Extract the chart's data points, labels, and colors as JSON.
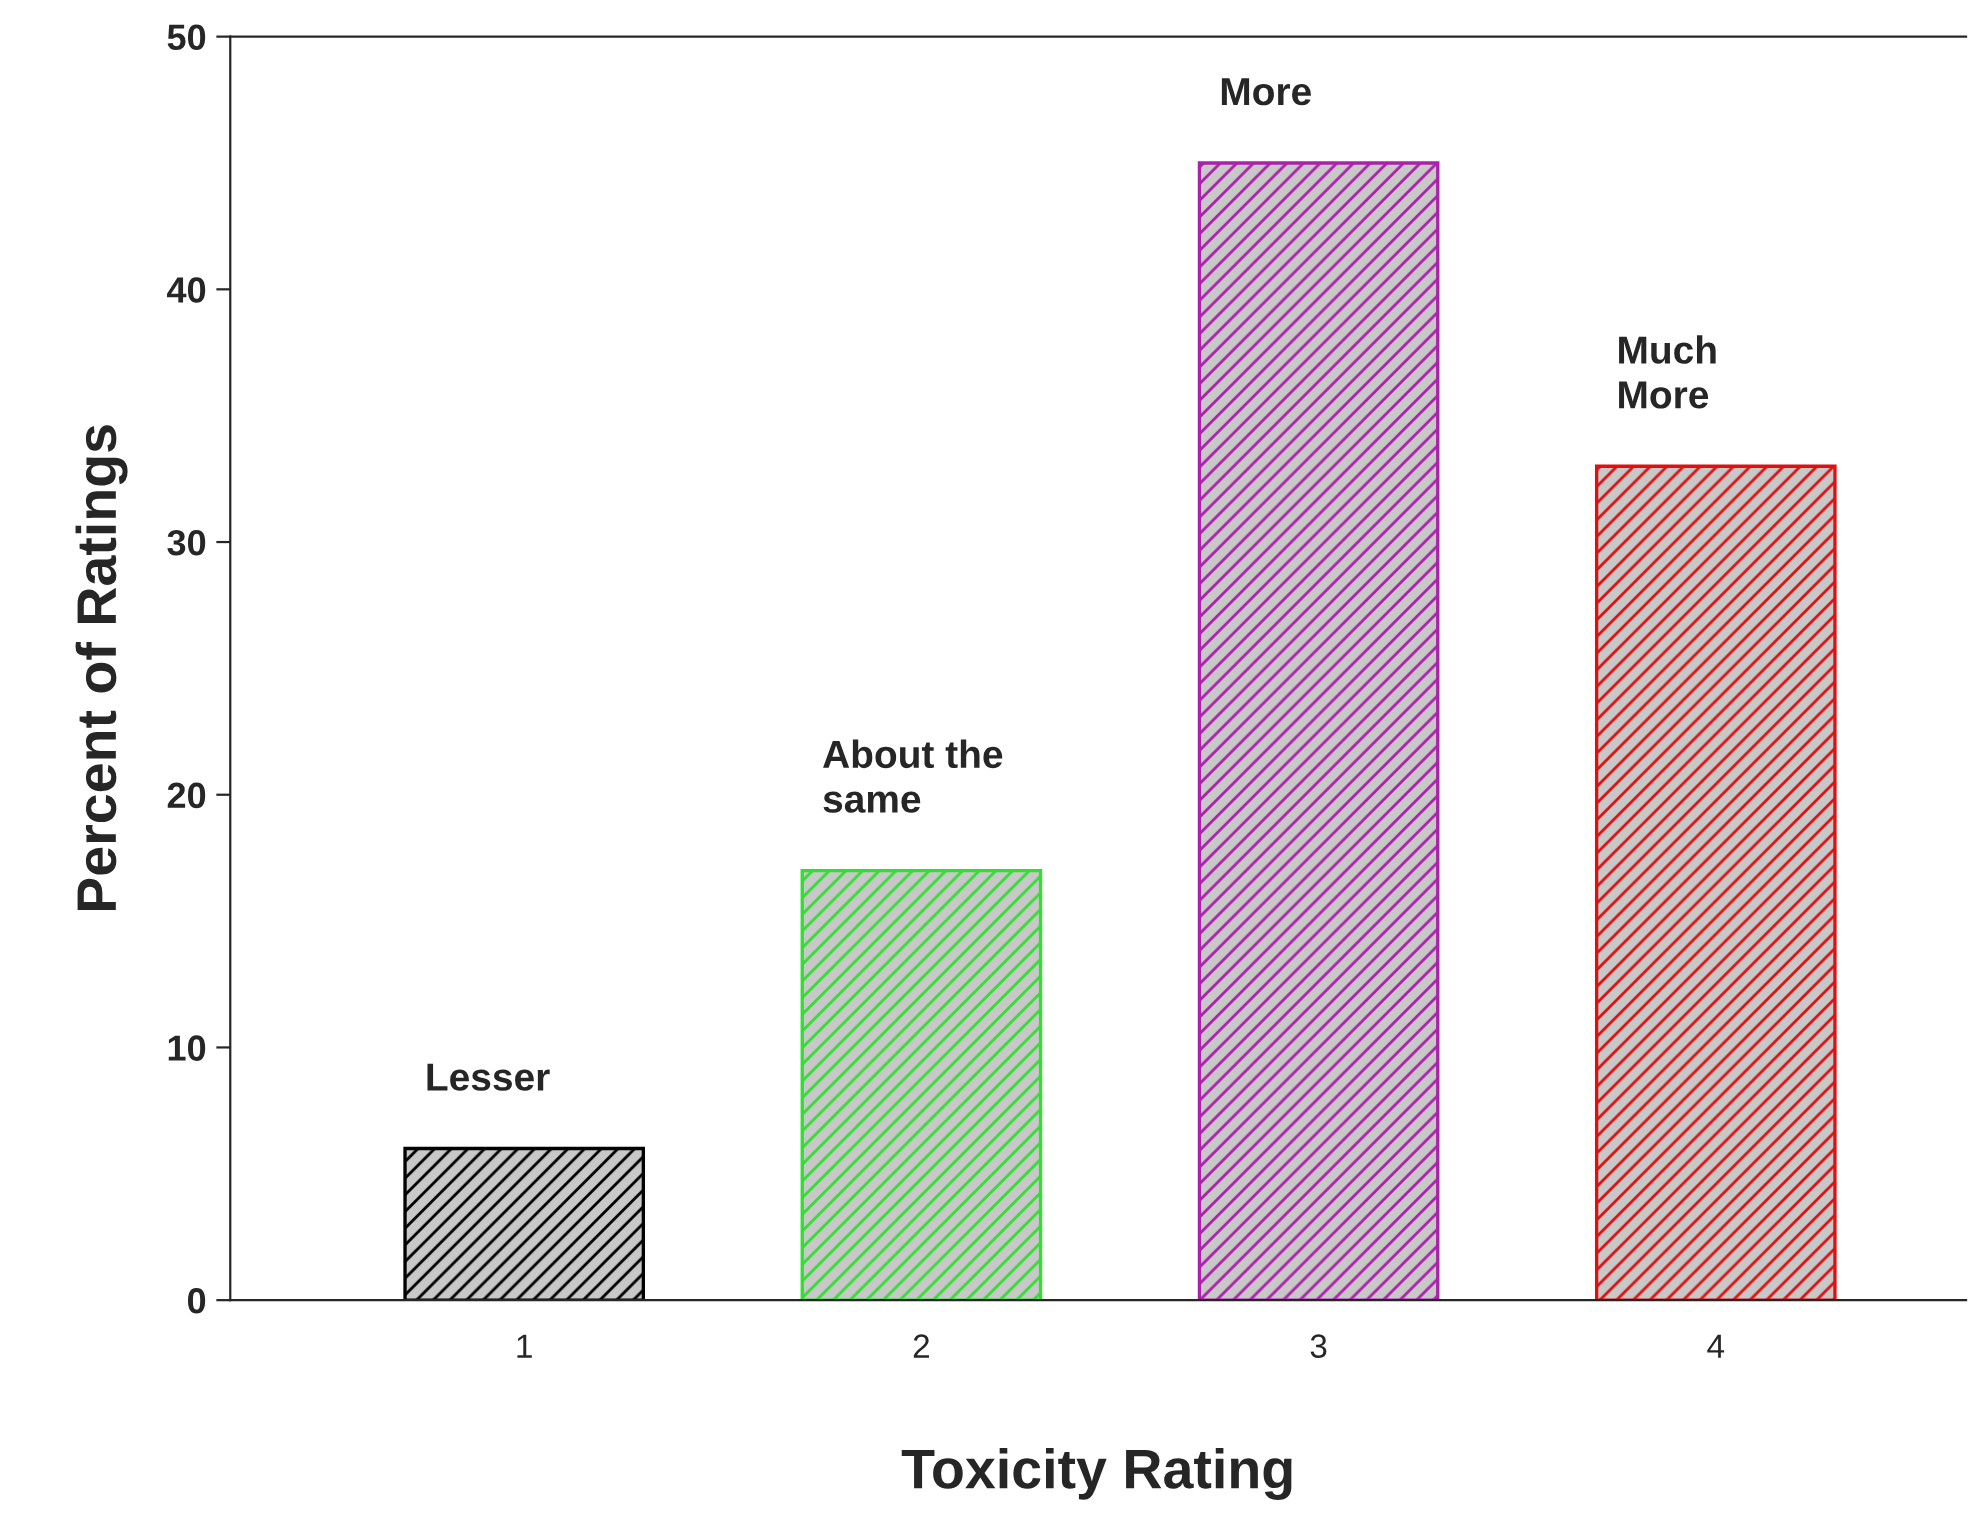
{
  "chart_data": {
    "type": "bar",
    "xlabel": "Toxicity Rating",
    "ylabel": "Percent of Ratings",
    "categories": [
      "1",
      "2",
      "3",
      "4"
    ],
    "values": [
      6,
      17,
      45,
      33
    ],
    "colors": [
      "#000000",
      "#33dd33",
      "#aa22aa",
      "#dd1111"
    ],
    "ylim": [
      0,
      50
    ],
    "yticks": [
      0,
      10,
      20,
      30,
      40,
      50
    ],
    "grid": false,
    "annotations": [
      "Lesser",
      "About the\nsame",
      "More",
      "Much\nMore"
    ]
  }
}
